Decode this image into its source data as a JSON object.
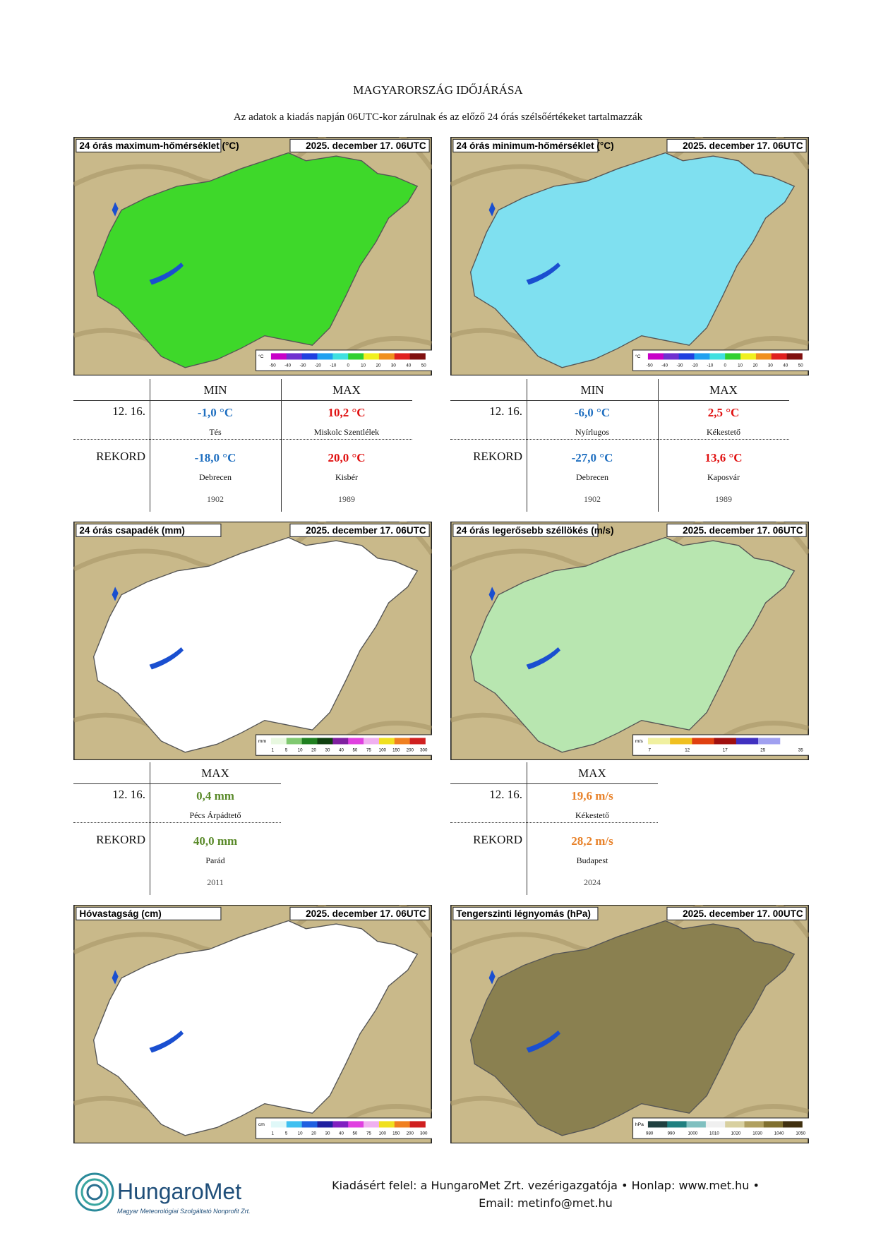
{
  "header": {
    "title": "MAGYARORSZÁG IDŐJÁRÁSA",
    "subtitle": "Az adatok a kiadás napján 06UTC-kor zárulnak és az előző 24 órás szélsőértékeket tartalmazzák"
  },
  "maps": [
    {
      "title": "24 órás maximum-hőmérséklet (°C)",
      "date": "2025. december 17. 06UTC",
      "legend_unit": "°C",
      "legend_ticks": [
        "-50",
        "-40",
        "-30",
        "-20",
        "-10",
        "0",
        "10",
        "20",
        "30",
        "40",
        "50"
      ]
    },
    {
      "title": "24 órás minimum-hőmérséklet (°C)",
      "date": "2025. december 17. 06UTC",
      "legend_unit": "°C",
      "legend_ticks": [
        "-50",
        "-40",
        "-30",
        "-20",
        "-10",
        "0",
        "10",
        "20",
        "30",
        "40",
        "50"
      ]
    },
    {
      "title": "24 órás csapadék (mm)",
      "date": "2025. december 17. 06UTC",
      "legend_unit": "mm",
      "legend_ticks": [
        "1",
        "5",
        "10",
        "20",
        "30",
        "40",
        "50",
        "75",
        "100",
        "150",
        "200",
        "300"
      ]
    },
    {
      "title": "24 órás legerősebb széllökés (m/s)",
      "date": "2025. december 17. 06UTC",
      "legend_unit": "m/s",
      "legend_ticks": [
        "7",
        "12",
        "17",
        "25",
        "35"
      ]
    },
    {
      "title": "Hóvastagság (cm)",
      "date": "2025. december 17. 06UTC",
      "legend_unit": "cm",
      "legend_ticks": [
        "1",
        "5",
        "10",
        "20",
        "30",
        "40",
        "50",
        "75",
        "100",
        "150",
        "200",
        "300"
      ]
    },
    {
      "title": "Tengerszinti légnyomás (hPa)",
      "date": "2025. december 17. 00UTC",
      "legend_unit": "hPa",
      "legend_ticks": [
        "980",
        "990",
        "1000",
        "1010",
        "1020",
        "1030",
        "1040",
        "1050"
      ]
    }
  ],
  "tables": [
    {
      "headers": [
        "MIN",
        "MAX"
      ],
      "colors": [
        "#1f6fc0",
        "#e01010"
      ],
      "rows": [
        {
          "label": "12. 16.",
          "cells": [
            {
              "value": "-1,0 °C",
              "place": "Tés"
            },
            {
              "value": "10,2 °C",
              "place": "Miskolc Szentlélek"
            }
          ]
        },
        {
          "label": "REKORD",
          "cells": [
            {
              "value": "-18,0 °C",
              "place": "Debrecen",
              "year": "1902"
            },
            {
              "value": "20,0 °C",
              "place": "Kisbér",
              "year": "1989"
            }
          ]
        }
      ]
    },
    {
      "headers": [
        "MIN",
        "MAX"
      ],
      "colors": [
        "#1f6fc0",
        "#e01010"
      ],
      "rows": [
        {
          "label": "12. 16.",
          "cells": [
            {
              "value": "-6,0 °C",
              "place": "Nyírlugos"
            },
            {
              "value": "2,5 °C",
              "place": "Kékestető"
            }
          ]
        },
        {
          "label": "REKORD",
          "cells": [
            {
              "value": "-27,0 °C",
              "place": "Debrecen",
              "year": "1902"
            },
            {
              "value": "13,6 °C",
              "place": "Kaposvár",
              "year": "1989"
            }
          ]
        }
      ]
    },
    {
      "headers": [
        "MAX"
      ],
      "colors": [
        "#5a8a2a"
      ],
      "rows": [
        {
          "label": "12. 16.",
          "cells": [
            {
              "value": "0,4 mm",
              "place": "Pécs Árpádtető"
            }
          ]
        },
        {
          "label": "REKORD",
          "cells": [
            {
              "value": "40,0 mm",
              "place": "Parád",
              "year": "2011"
            }
          ]
        }
      ]
    },
    {
      "headers": [
        "MAX"
      ],
      "colors": [
        "#e8822a"
      ],
      "rows": [
        {
          "label": "12. 16.",
          "cells": [
            {
              "value": "19,6 m/s",
              "place": "Kékestető"
            }
          ]
        },
        {
          "label": "REKORD",
          "cells": [
            {
              "value": "28,2 m/s",
              "place": "Budapest",
              "year": "2024"
            }
          ]
        }
      ]
    }
  ],
  "footer": {
    "logo": "HungaroMet",
    "tagline": "Magyar Meteorológiai Szolgáltató Nonprofit Zrt.",
    "line1": "Kiadásért felel: a HungaroMet Zrt. vezérigazgatója • Honlap: www.met.hu •",
    "line2": "Email: metinfo@met.hu"
  }
}
